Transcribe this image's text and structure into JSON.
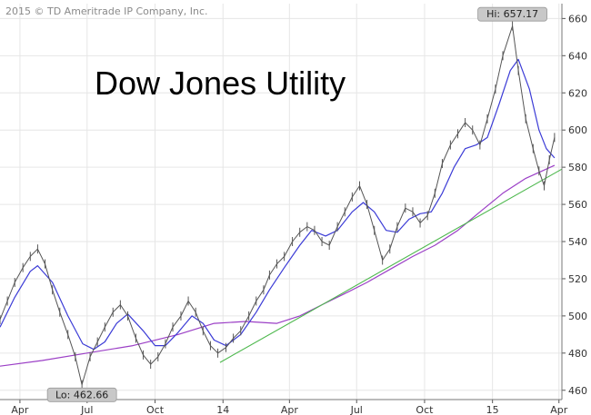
{
  "copyright": "2015 © TD Ameritrade IP Company, Inc.",
  "chart_data": {
    "type": "line",
    "title": "Dow Jones Utility",
    "xlabel": "",
    "ylabel": "",
    "y_axis_side": "right",
    "ylim": [
      455,
      668
    ],
    "xlim": [
      "2013-03-05",
      "2015-04-05"
    ],
    "grid": true,
    "y_ticks": [
      460,
      480,
      500,
      520,
      540,
      560,
      580,
      600,
      620,
      640,
      660
    ],
    "x_ticks": [
      {
        "label": "Apr",
        "date": "2013-04-01"
      },
      {
        "label": "Jul",
        "date": "2013-07-01"
      },
      {
        "label": "Oct",
        "date": "2013-10-01"
      },
      {
        "label": "14",
        "date": "2014-01-01"
      },
      {
        "label": "Apr",
        "date": "2014-04-01"
      },
      {
        "label": "Jul",
        "date": "2014-07-01"
      },
      {
        "label": "Oct",
        "date": "2014-10-01"
      },
      {
        "label": "15",
        "date": "2015-01-01"
      },
      {
        "label": "Apr",
        "date": "2015-04-01"
      }
    ],
    "annotations": {
      "high": {
        "label": "Hi: 657.17",
        "date": "2015-01-28",
        "value": 657.17
      },
      "low": {
        "label": "Lo: 462.66",
        "date": "2013-06-24",
        "value": 462.66
      }
    },
    "colors": {
      "price": "#555555",
      "short_ma": "#3b3bd6",
      "long_ma": "#9b3fc6",
      "trendline": "#4db84d",
      "grid": "#e6e6e6",
      "badge": "#c8c8c8"
    },
    "series": [
      {
        "role": "price",
        "points": [
          [
            "2013-03-05",
            498
          ],
          [
            "2013-03-15",
            508
          ],
          [
            "2013-03-25",
            518
          ],
          [
            "2013-04-05",
            526
          ],
          [
            "2013-04-15",
            532
          ],
          [
            "2013-04-25",
            536
          ],
          [
            "2013-05-05",
            528
          ],
          [
            "2013-05-15",
            514
          ],
          [
            "2013-05-25",
            502
          ],
          [
            "2013-06-05",
            490
          ],
          [
            "2013-06-15",
            478
          ],
          [
            "2013-06-24",
            463
          ],
          [
            "2013-07-05",
            478
          ],
          [
            "2013-07-15",
            486
          ],
          [
            "2013-07-25",
            494
          ],
          [
            "2013-08-05",
            502
          ],
          [
            "2013-08-15",
            506
          ],
          [
            "2013-08-25",
            500
          ],
          [
            "2013-09-05",
            488
          ],
          [
            "2013-09-15",
            479
          ],
          [
            "2013-09-25",
            474
          ],
          [
            "2013-10-05",
            478
          ],
          [
            "2013-10-15",
            485
          ],
          [
            "2013-10-25",
            494
          ],
          [
            "2013-11-05",
            500
          ],
          [
            "2013-11-15",
            508
          ],
          [
            "2013-11-25",
            502
          ],
          [
            "2013-12-05",
            492
          ],
          [
            "2013-12-15",
            484
          ],
          [
            "2013-12-25",
            480
          ],
          [
            "2014-01-05",
            483
          ],
          [
            "2014-01-15",
            488
          ],
          [
            "2014-01-25",
            492
          ],
          [
            "2014-02-05",
            500
          ],
          [
            "2014-02-15",
            508
          ],
          [
            "2014-02-25",
            514
          ],
          [
            "2014-03-05",
            522
          ],
          [
            "2014-03-15",
            528
          ],
          [
            "2014-03-25",
            532
          ],
          [
            "2014-04-05",
            540
          ],
          [
            "2014-04-15",
            545
          ],
          [
            "2014-04-25",
            548
          ],
          [
            "2014-05-05",
            546
          ],
          [
            "2014-05-15",
            540
          ],
          [
            "2014-05-25",
            538
          ],
          [
            "2014-06-05",
            548
          ],
          [
            "2014-06-15",
            556
          ],
          [
            "2014-06-25",
            564
          ],
          [
            "2014-07-05",
            570
          ],
          [
            "2014-07-15",
            560
          ],
          [
            "2014-07-25",
            546
          ],
          [
            "2014-08-05",
            530
          ],
          [
            "2014-08-15",
            536
          ],
          [
            "2014-08-25",
            548
          ],
          [
            "2014-09-05",
            558
          ],
          [
            "2014-09-15",
            556
          ],
          [
            "2014-09-25",
            550
          ],
          [
            "2014-10-05",
            554
          ],
          [
            "2014-10-15",
            566
          ],
          [
            "2014-10-25",
            582
          ],
          [
            "2014-11-05",
            592
          ],
          [
            "2014-11-15",
            598
          ],
          [
            "2014-11-25",
            604
          ],
          [
            "2014-12-05",
            600
          ],
          [
            "2014-12-15",
            592
          ],
          [
            "2014-12-25",
            606
          ],
          [
            "2015-01-05",
            622
          ],
          [
            "2015-01-15",
            640
          ],
          [
            "2015-01-28",
            656
          ],
          [
            "2015-02-05",
            632
          ],
          [
            "2015-02-15",
            606
          ],
          [
            "2015-02-25",
            590
          ],
          [
            "2015-03-05",
            578
          ],
          [
            "2015-03-12",
            570
          ],
          [
            "2015-03-19",
            584
          ],
          [
            "2015-03-26",
            596
          ]
        ]
      },
      {
        "role": "short_ma",
        "points": [
          [
            "2013-03-05",
            494
          ],
          [
            "2013-03-25",
            510
          ],
          [
            "2013-04-15",
            524
          ],
          [
            "2013-04-25",
            527
          ],
          [
            "2013-05-15",
            518
          ],
          [
            "2013-06-05",
            500
          ],
          [
            "2013-06-25",
            485
          ],
          [
            "2013-07-10",
            482
          ],
          [
            "2013-07-25",
            486
          ],
          [
            "2013-08-10",
            496
          ],
          [
            "2013-08-25",
            501
          ],
          [
            "2013-09-15",
            492
          ],
          [
            "2013-10-01",
            484
          ],
          [
            "2013-10-15",
            484
          ],
          [
            "2013-11-01",
            491
          ],
          [
            "2013-11-20",
            500
          ],
          [
            "2013-12-05",
            496
          ],
          [
            "2013-12-20",
            487
          ],
          [
            "2014-01-05",
            484
          ],
          [
            "2014-01-25",
            490
          ],
          [
            "2014-02-15",
            502
          ],
          [
            "2014-03-05",
            514
          ],
          [
            "2014-03-25",
            526
          ],
          [
            "2014-04-15",
            538
          ],
          [
            "2014-05-01",
            546
          ],
          [
            "2014-05-20",
            543
          ],
          [
            "2014-06-05",
            546
          ],
          [
            "2014-06-25",
            556
          ],
          [
            "2014-07-10",
            561
          ],
          [
            "2014-07-25",
            556
          ],
          [
            "2014-08-10",
            546
          ],
          [
            "2014-08-25",
            545
          ],
          [
            "2014-09-10",
            552
          ],
          [
            "2014-09-25",
            555
          ],
          [
            "2014-10-10",
            556
          ],
          [
            "2014-10-25",
            566
          ],
          [
            "2014-11-10",
            580
          ],
          [
            "2014-11-25",
            590
          ],
          [
            "2014-12-10",
            592
          ],
          [
            "2014-12-25",
            596
          ],
          [
            "2015-01-10",
            614
          ],
          [
            "2015-01-25",
            632
          ],
          [
            "2015-02-05",
            638
          ],
          [
            "2015-02-20",
            622
          ],
          [
            "2015-03-05",
            600
          ],
          [
            "2015-03-15",
            590
          ],
          [
            "2015-03-26",
            585
          ]
        ]
      },
      {
        "role": "long_ma",
        "points": [
          [
            "2013-03-05",
            473
          ],
          [
            "2013-05-01",
            476
          ],
          [
            "2013-07-01",
            480
          ],
          [
            "2013-09-01",
            484
          ],
          [
            "2013-11-01",
            490
          ],
          [
            "2013-12-20",
            496
          ],
          [
            "2014-02-01",
            497
          ],
          [
            "2014-03-15",
            496
          ],
          [
            "2014-04-15",
            500
          ],
          [
            "2014-05-15",
            506
          ],
          [
            "2014-06-15",
            512
          ],
          [
            "2014-07-15",
            518
          ],
          [
            "2014-08-15",
            525
          ],
          [
            "2014-09-15",
            532
          ],
          [
            "2014-10-15",
            538
          ],
          [
            "2014-11-15",
            546
          ],
          [
            "2014-12-15",
            556
          ],
          [
            "2015-01-15",
            566
          ],
          [
            "2015-02-15",
            574
          ],
          [
            "2015-03-26",
            581
          ]
        ]
      },
      {
        "role": "trendline",
        "points": [
          [
            "2013-12-28",
            475
          ],
          [
            "2015-04-05",
            579
          ]
        ]
      }
    ]
  }
}
